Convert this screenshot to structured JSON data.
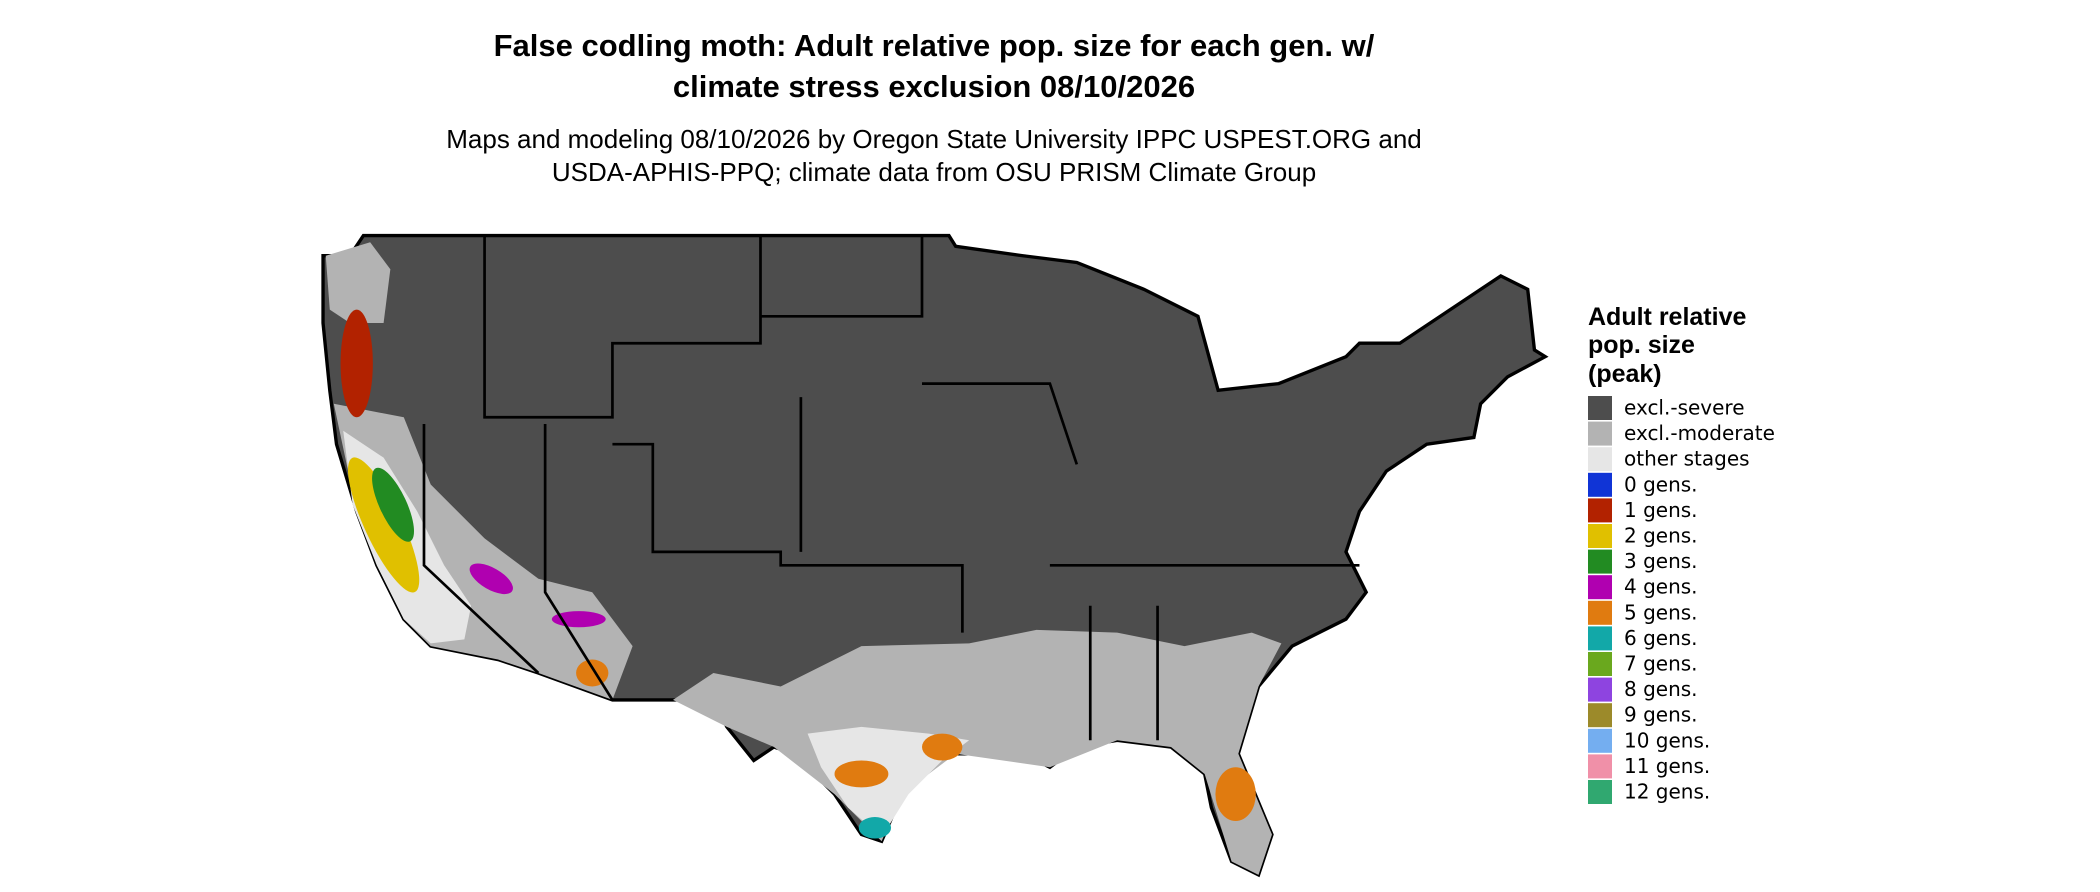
{
  "header": {
    "title": [
      "False codling moth: Adult relative pop. size for each gen. w/",
      "climate stress exclusion 08/10/2026"
    ],
    "subtitle": [
      "Maps and modeling 08/10/2026 by Oregon State University IPPC USPEST.ORG and",
      "USDA-APHIS-PPQ; climate data from OSU PRISM Climate Group"
    ]
  },
  "legend": {
    "title": [
      "Adult relative",
      "pop. size",
      "(peak)"
    ],
    "items": [
      {
        "label": "excl.-severe",
        "color": "#4d4d4d"
      },
      {
        "label": "excl.-moderate",
        "color": "#b3b3b3"
      },
      {
        "label": "other stages",
        "color": "#e6e6e6"
      },
      {
        "label": "0 gens.",
        "color": "#1034d6"
      },
      {
        "label": "1 gens.",
        "color": "#b22200"
      },
      {
        "label": "2 gens.",
        "color": "#e0c000"
      },
      {
        "label": "3 gens.",
        "color": "#228b22"
      },
      {
        "label": "4 gens.",
        "color": "#b000b0"
      },
      {
        "label": "5 gens.",
        "color": "#e07b10"
      },
      {
        "label": "6 gens.",
        "color": "#12a8a8"
      },
      {
        "label": "7 gens.",
        "color": "#6aa81e"
      },
      {
        "label": "8 gens.",
        "color": "#8e44e0"
      },
      {
        "label": "9 gens.",
        "color": "#9c8a2a"
      },
      {
        "label": "10 gens.",
        "color": "#74aef0"
      },
      {
        "label": "11 gens.",
        "color": "#f090a8"
      },
      {
        "label": "12 gens.",
        "color": "#30a870"
      }
    ]
  }
}
